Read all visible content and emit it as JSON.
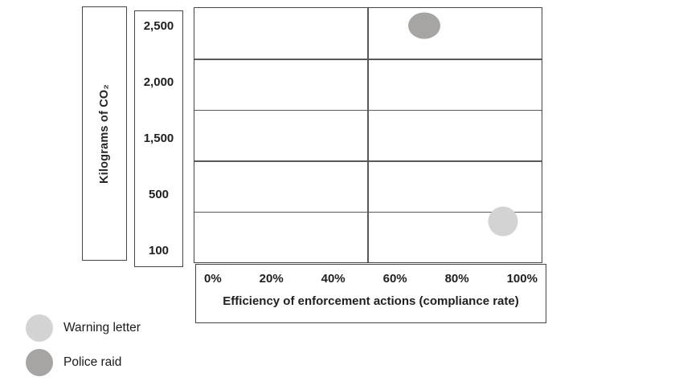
{
  "chart_data": {
    "type": "scatter",
    "title": "",
    "xlabel": "Efficiency of enforcement actions (compliance rate)",
    "ylabel": "Kilograms of CO₂",
    "x_tick_labels": [
      "0%",
      "20%",
      "40%",
      "60%",
      "80%",
      "100%"
    ],
    "y_tick_labels": [
      "2,500",
      "2,000",
      "1,500",
      "500",
      "100"
    ],
    "xlim": [
      0,
      100
    ],
    "grid": "4 horizontal gridlines (one per tick row) plus a vertical midline at 50%",
    "legend_position": "bottom-left",
    "series": [
      {
        "name": "Warning letter",
        "color": "#d3d3d3",
        "points": [
          {
            "x_percent": 90,
            "y_kg_co2": 300
          }
        ]
      },
      {
        "name": "Police raid",
        "color": "#a7a4a4",
        "points": [
          {
            "x_percent": 65,
            "y_kg_co2": 2500
          }
        ]
      }
    ]
  },
  "legend": {
    "items": [
      {
        "label": "Warning letter",
        "color": "#d3d3d3"
      },
      {
        "label": "Police raid",
        "color": "#a7a4a4"
      }
    ]
  },
  "colors": {
    "box_border": "#454545",
    "gridline": "#595959",
    "text": "#1f1f1f",
    "background": "#ffffff"
  }
}
